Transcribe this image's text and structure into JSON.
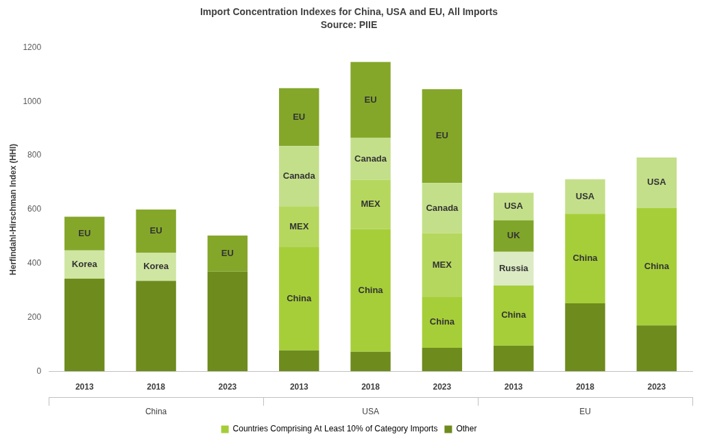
{
  "chart_data": {
    "type": "bar",
    "stacked": true,
    "title": "Import Concentration Indexes for China, USA and EU, All Imports",
    "subtitle": "Source: PIIE",
    "y_label": "Herfindahl-Hirschman Index (HHI)",
    "categories": [
      "2013",
      "2018",
      "2023",
      "2013",
      "2018",
      "2023",
      "2013",
      "2018",
      "2023"
    ],
    "category_groups": [
      "China",
      "USA",
      "EU"
    ],
    "ylim": [
      0,
      1200
    ],
    "yticks": [
      0,
      200,
      400,
      600,
      800,
      1000,
      1200
    ],
    "grid": false,
    "legend": "bottom",
    "series": [
      {
        "name": "Countries Comprising At Least 10% of Category Imports",
        "color": "#a5cd39",
        "segments": [
          [
            {
              "label": "Korea",
              "value": 105,
              "color": "#cfe5a2"
            },
            {
              "label": "EU",
              "value": 125,
              "color": "#84a72a"
            }
          ],
          [
            {
              "label": "Korea",
              "value": 105,
              "color": "#cfe5a2"
            },
            {
              "label": "EU",
              "value": 160,
              "color": "#84a72a"
            }
          ],
          [
            {
              "label": "EU",
              "value": 133,
              "color": "#84a72a"
            }
          ],
          [
            {
              "label": "China",
              "value": 383,
              "color": "#a6ce39"
            },
            {
              "label": "MEX",
              "value": 152,
              "color": "#b6d75e"
            },
            {
              "label": "Canada",
              "value": 223,
              "color": "#c4df8a"
            },
            {
              "label": "EU",
              "value": 215,
              "color": "#84a72a"
            }
          ],
          [
            {
              "label": "China",
              "value": 455,
              "color": "#a6ce39"
            },
            {
              "label": "MEX",
              "value": 183,
              "color": "#b6d75e"
            },
            {
              "label": "Canada",
              "value": 155,
              "color": "#c4df8a"
            },
            {
              "label": "EU",
              "value": 282,
              "color": "#84a72a"
            }
          ],
          [
            {
              "label": "China",
              "value": 188,
              "color": "#a6ce39"
            },
            {
              "label": "MEX",
              "value": 237,
              "color": "#b6d75e"
            },
            {
              "label": "Canada",
              "value": 186,
              "color": "#c4df8a"
            },
            {
              "label": "EU",
              "value": 348,
              "color": "#84a72a"
            }
          ],
          [
            {
              "label": "China",
              "value": 223,
              "color": "#a6ce39"
            },
            {
              "label": "Russia",
              "value": 125,
              "color": "#ddebc4"
            },
            {
              "label": "UK",
              "value": 117,
              "color": "#80a52b"
            },
            {
              "label": "USA",
              "value": 102,
              "color": "#c4df8a"
            }
          ],
          [
            {
              "label": "China",
              "value": 332,
              "color": "#a6ce39"
            },
            {
              "label": "USA",
              "value": 128,
              "color": "#c4df8a"
            }
          ],
          [
            {
              "label": "China",
              "value": 435,
              "color": "#a6ce39"
            },
            {
              "label": "USA",
              "value": 188,
              "color": "#c4df8a"
            }
          ]
        ]
      },
      {
        "name": "Other",
        "color": "#6e8b1e",
        "values": [
          343,
          335,
          370,
          77,
          72,
          87,
          95,
          252,
          170
        ]
      }
    ]
  }
}
